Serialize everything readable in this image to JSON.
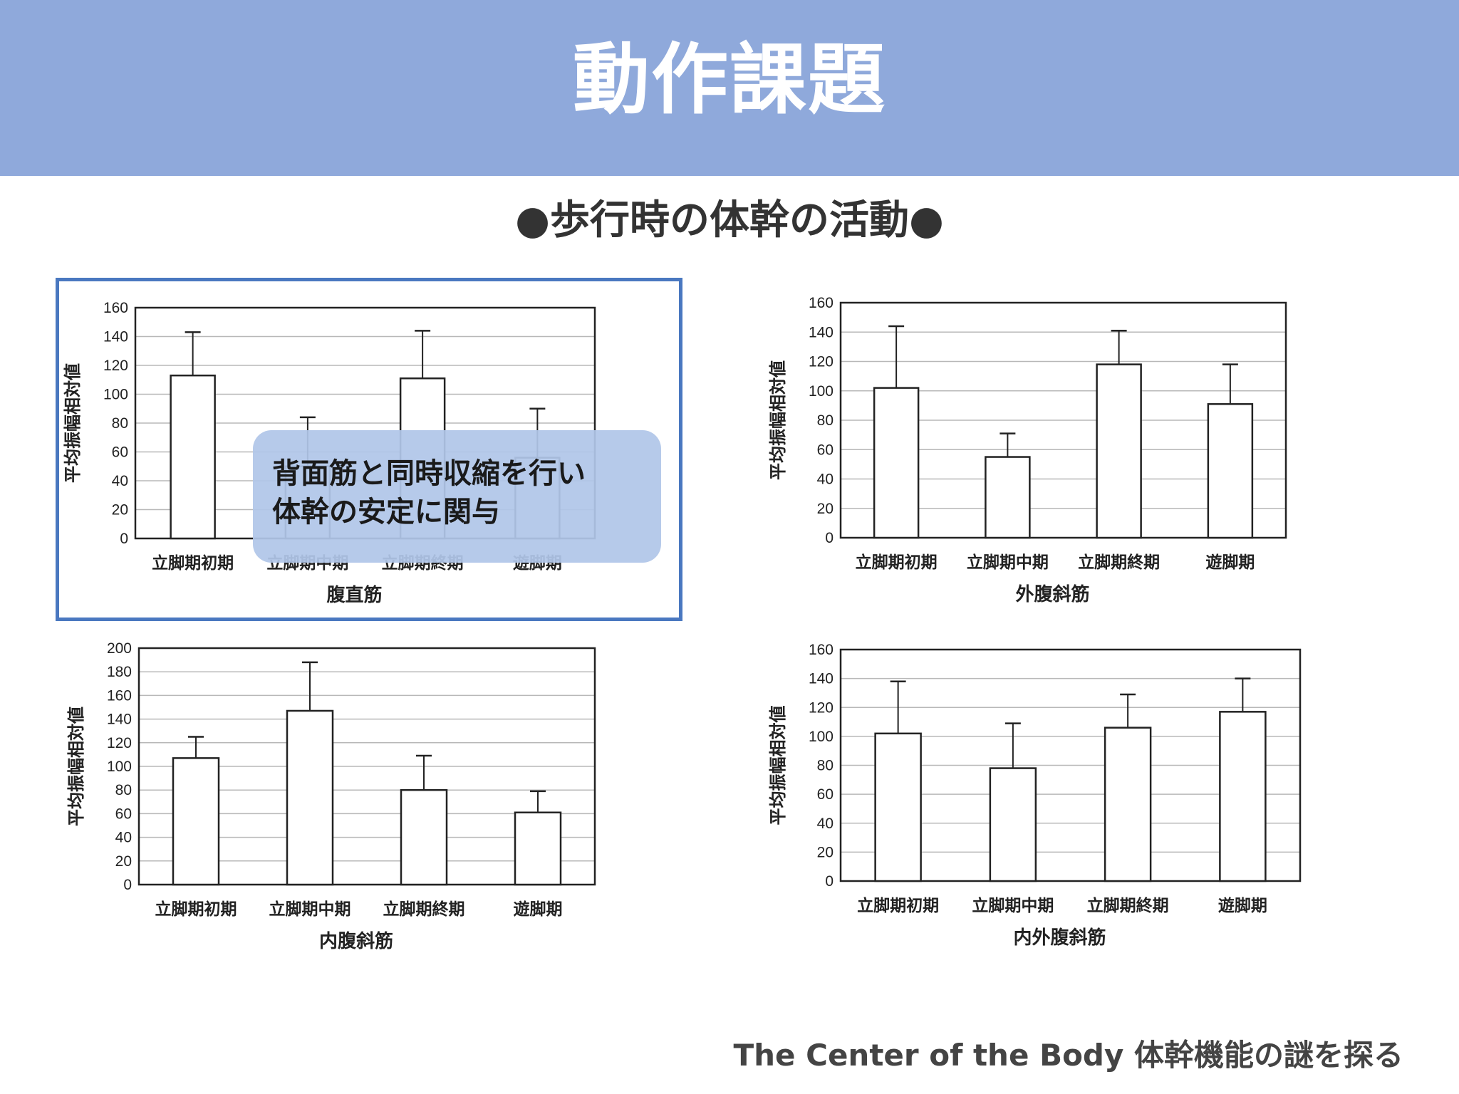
{
  "header": {
    "title": "動作課題"
  },
  "subtitle": "●歩行時の体幹の活動●",
  "callout": {
    "line1": "背面筋と同時収縮を行い",
    "line2": "体幹の安定に関与"
  },
  "footer": "The Center of the Body 体幹機能の謎を探る",
  "colors": {
    "header_bg": "#8fa9db",
    "highlight_border": "#4a78c0",
    "callout_bg": "#b0c6e8"
  },
  "chart_data": [
    {
      "id": "rectus",
      "type": "bar",
      "title": "",
      "xlabel": "腹直筋",
      "ylabel": "平均振幅相対値",
      "categories": [
        "立脚期初期",
        "立脚期中期",
        "立脚期終期",
        "遊脚期"
      ],
      "values": [
        113,
        50,
        111,
        56
      ],
      "error_upper": [
        143,
        84,
        144,
        90
      ],
      "ylim": [
        0,
        160
      ],
      "yticks": [
        "0",
        "20",
        "40",
        "60",
        "80",
        "100",
        "120",
        "140",
        "160"
      ],
      "grid": true
    },
    {
      "id": "external",
      "type": "bar",
      "title": "",
      "xlabel": "外腹斜筋",
      "ylabel": "平均振幅相対値",
      "categories": [
        "立脚期初期",
        "立脚期中期",
        "立脚期終期",
        "遊脚期"
      ],
      "values": [
        102,
        55,
        118,
        91
      ],
      "error_upper": [
        144,
        71,
        141,
        118
      ],
      "ylim": [
        0,
        160
      ],
      "yticks": [
        "0",
        "20",
        "40",
        "60",
        "80",
        "100",
        "120",
        "140",
        "160"
      ],
      "grid": true
    },
    {
      "id": "internal",
      "type": "bar",
      "title": "",
      "xlabel": "内腹斜筋",
      "ylabel": "平均振幅相対値",
      "categories": [
        "立脚期初期",
        "立脚期中期",
        "立脚期終期",
        "遊脚期"
      ],
      "values": [
        107,
        147,
        80,
        61
      ],
      "error_upper": [
        125,
        188,
        109,
        79
      ],
      "ylim": [
        0,
        200
      ],
      "yticks": [
        "0",
        "20",
        "40",
        "60",
        "80",
        "100",
        "120",
        "140",
        "160",
        "180",
        "200"
      ],
      "grid": true
    },
    {
      "id": "inner-external",
      "type": "bar",
      "title": "",
      "xlabel": "内外腹斜筋",
      "ylabel": "平均振幅相対値",
      "categories": [
        "立脚期初期",
        "立脚期中期",
        "立脚期終期",
        "遊脚期"
      ],
      "values": [
        102,
        78,
        106,
        117
      ],
      "error_upper": [
        138,
        109,
        129,
        140
      ],
      "ylim": [
        0,
        160
      ],
      "yticks": [
        "0",
        "20",
        "40",
        "60",
        "80",
        "100",
        "120",
        "140",
        "160"
      ],
      "grid": true
    }
  ]
}
